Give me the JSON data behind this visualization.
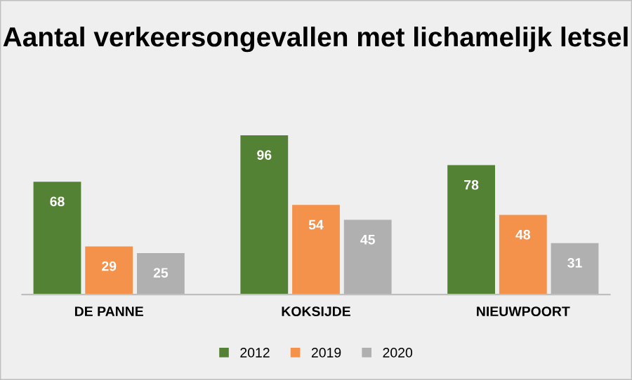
{
  "chart_data": {
    "type": "bar",
    "title": "Aantal verkeersongevallen met lichamelijk letsel",
    "categories": [
      "DE PANNE",
      "KOKSIJDE",
      "NIEUWPOORT"
    ],
    "series": [
      {
        "name": "2012",
        "color": "#548235",
        "values": [
          68,
          96,
          78
        ]
      },
      {
        "name": "2019",
        "color": "#f4914b",
        "values": [
          29,
          54,
          48
        ]
      },
      {
        "name": "2020",
        "color": "#b0b0b0",
        "values": [
          25,
          45,
          31
        ]
      }
    ],
    "data_labels": true,
    "legend": "bottom",
    "grid": false,
    "tick_labels": "x"
  }
}
